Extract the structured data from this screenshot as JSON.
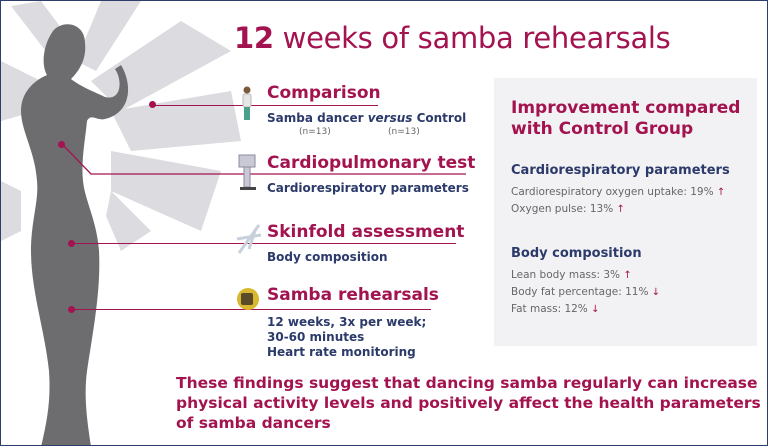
{
  "title": {
    "number": "12",
    "rest": " weeks of samba rehearsals"
  },
  "sections": [
    {
      "heading": "Comparison",
      "icon": "person-icon",
      "lines": [
        "Samba dancer versus Control"
      ],
      "sub": {
        "a": "Samba dancer ",
        "italic": "versus",
        "b": " Control",
        "n1": "(n=13)",
        "n2": "(n=13)"
      }
    },
    {
      "heading": "Cardiopulmonary test",
      "icon": "ergometer-icon",
      "lines": [
        "Cardiorespiratory parameters"
      ]
    },
    {
      "heading": "Skinfold assessment",
      "icon": "caliper-icon",
      "lines": [
        "Body composition"
      ]
    },
    {
      "heading": "Samba rehearsals",
      "icon": "heart-rate-watch-icon",
      "lines": [
        "12 weeks, 3x per week;",
        "30-60 minutes",
        "Heart rate monitoring"
      ]
    }
  ],
  "panel": {
    "heading_line1": "Improvement compared",
    "heading_line2": "with Control Group",
    "groups": [
      {
        "title": "Cardiorespiratory parameters",
        "items": [
          {
            "label": "Cardiorespiratory oxygen uptake: 19%",
            "direction": "up"
          },
          {
            "label": "Oxygen pulse: 13%",
            "direction": "up"
          }
        ]
      },
      {
        "title": "Body composition",
        "items": [
          {
            "label": "Lean body mass: 3%",
            "direction": "up"
          },
          {
            "label": "Body fat percentage: 11%",
            "direction": "down"
          },
          {
            "label": "Fat mass: 12%",
            "direction": "down"
          }
        ]
      }
    ],
    "arrows": {
      "up": "↑",
      "down": "↓"
    }
  },
  "conclusion": [
    "These findings suggest that dancing samba regularly can increase",
    "physical activity levels and positively affect the health parameters",
    "of samba dancers"
  ],
  "colors": {
    "accent": "#a3134f",
    "navy": "#2b3a6b",
    "silhouette": "#6d6d70",
    "feathers": "#d9d9dd",
    "panel": "#f2f2f4"
  }
}
